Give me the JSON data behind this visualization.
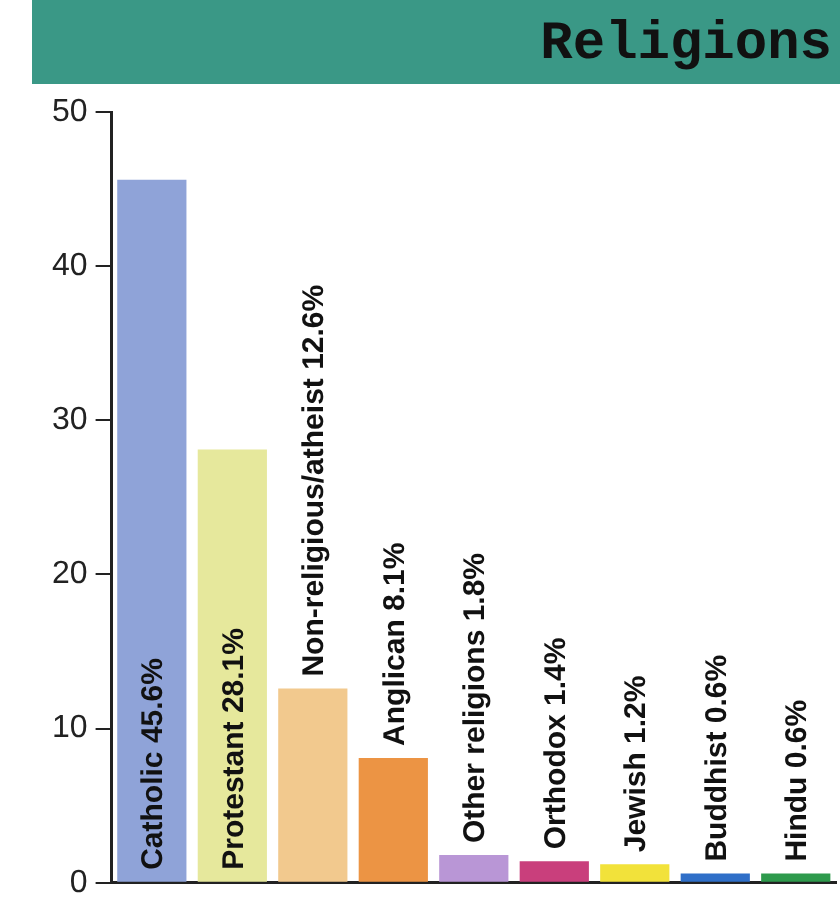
{
  "chart_data": {
    "type": "bar",
    "title": "Religions",
    "categories": [
      "Catholic",
      "Protestant",
      "Non-religious/atheist",
      "Anglican",
      "Other religions",
      "Orthodox",
      "Jewish",
      "Buddhist",
      "Hindu"
    ],
    "values": [
      45.6,
      28.1,
      12.6,
      8.1,
      1.8,
      1.4,
      1.2,
      0.6,
      0.6
    ],
    "value_labels": [
      "45.6%",
      "28.1%",
      "12.6%",
      "8.1%",
      "1.8%",
      "1.4%",
      "1.2%",
      "0.6%",
      "0.6%"
    ],
    "colors": [
      "#8fa3d8",
      "#e6e89c",
      "#f2c98e",
      "#ec9444",
      "#b996d6",
      "#c93f7c",
      "#f2e23a",
      "#2f6fc8",
      "#2e9a4c"
    ],
    "ylim": [
      0,
      50
    ],
    "yticks": [
      0,
      10,
      20,
      30,
      40,
      50
    ],
    "grid": false,
    "legend": false
  }
}
